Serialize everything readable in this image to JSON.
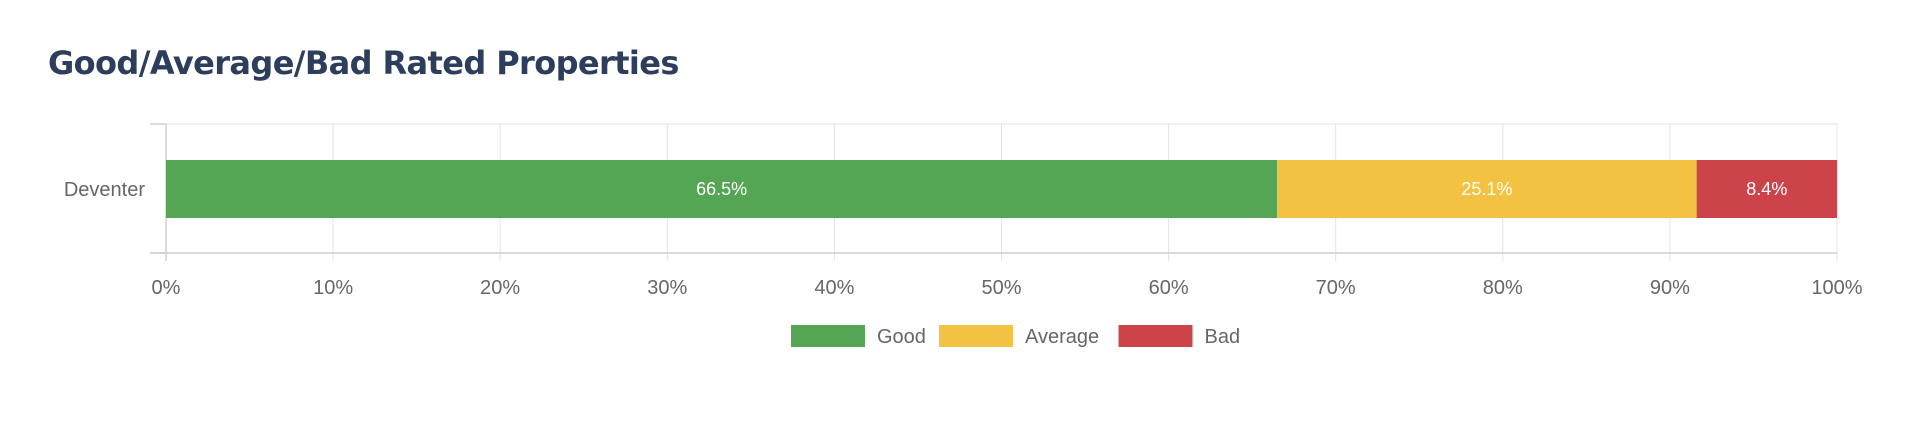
{
  "title": "Good/Average/Bad Rated Properties",
  "chart_data": {
    "type": "bar",
    "orientation": "horizontal",
    "stacked": true,
    "title": "Good/Average/Bad Rated Properties",
    "categories": [
      "Deventer"
    ],
    "series": [
      {
        "name": "Good",
        "values": [
          66.5
        ],
        "color": "#54a554",
        "label": "66.5%"
      },
      {
        "name": "Average",
        "values": [
          25.1
        ],
        "color": "#f4c242",
        "label": "25.1%"
      },
      {
        "name": "Bad",
        "values": [
          8.4
        ],
        "color": "#cc4349",
        "label": "8.4%"
      }
    ],
    "xlim": [
      0,
      100
    ],
    "x_ticks": [
      "0%",
      "10%",
      "20%",
      "30%",
      "40%",
      "50%",
      "60%",
      "70%",
      "80%",
      "90%",
      "100%"
    ],
    "xlabel": "",
    "ylabel": "",
    "grid": true,
    "legend": "bottom-center"
  }
}
